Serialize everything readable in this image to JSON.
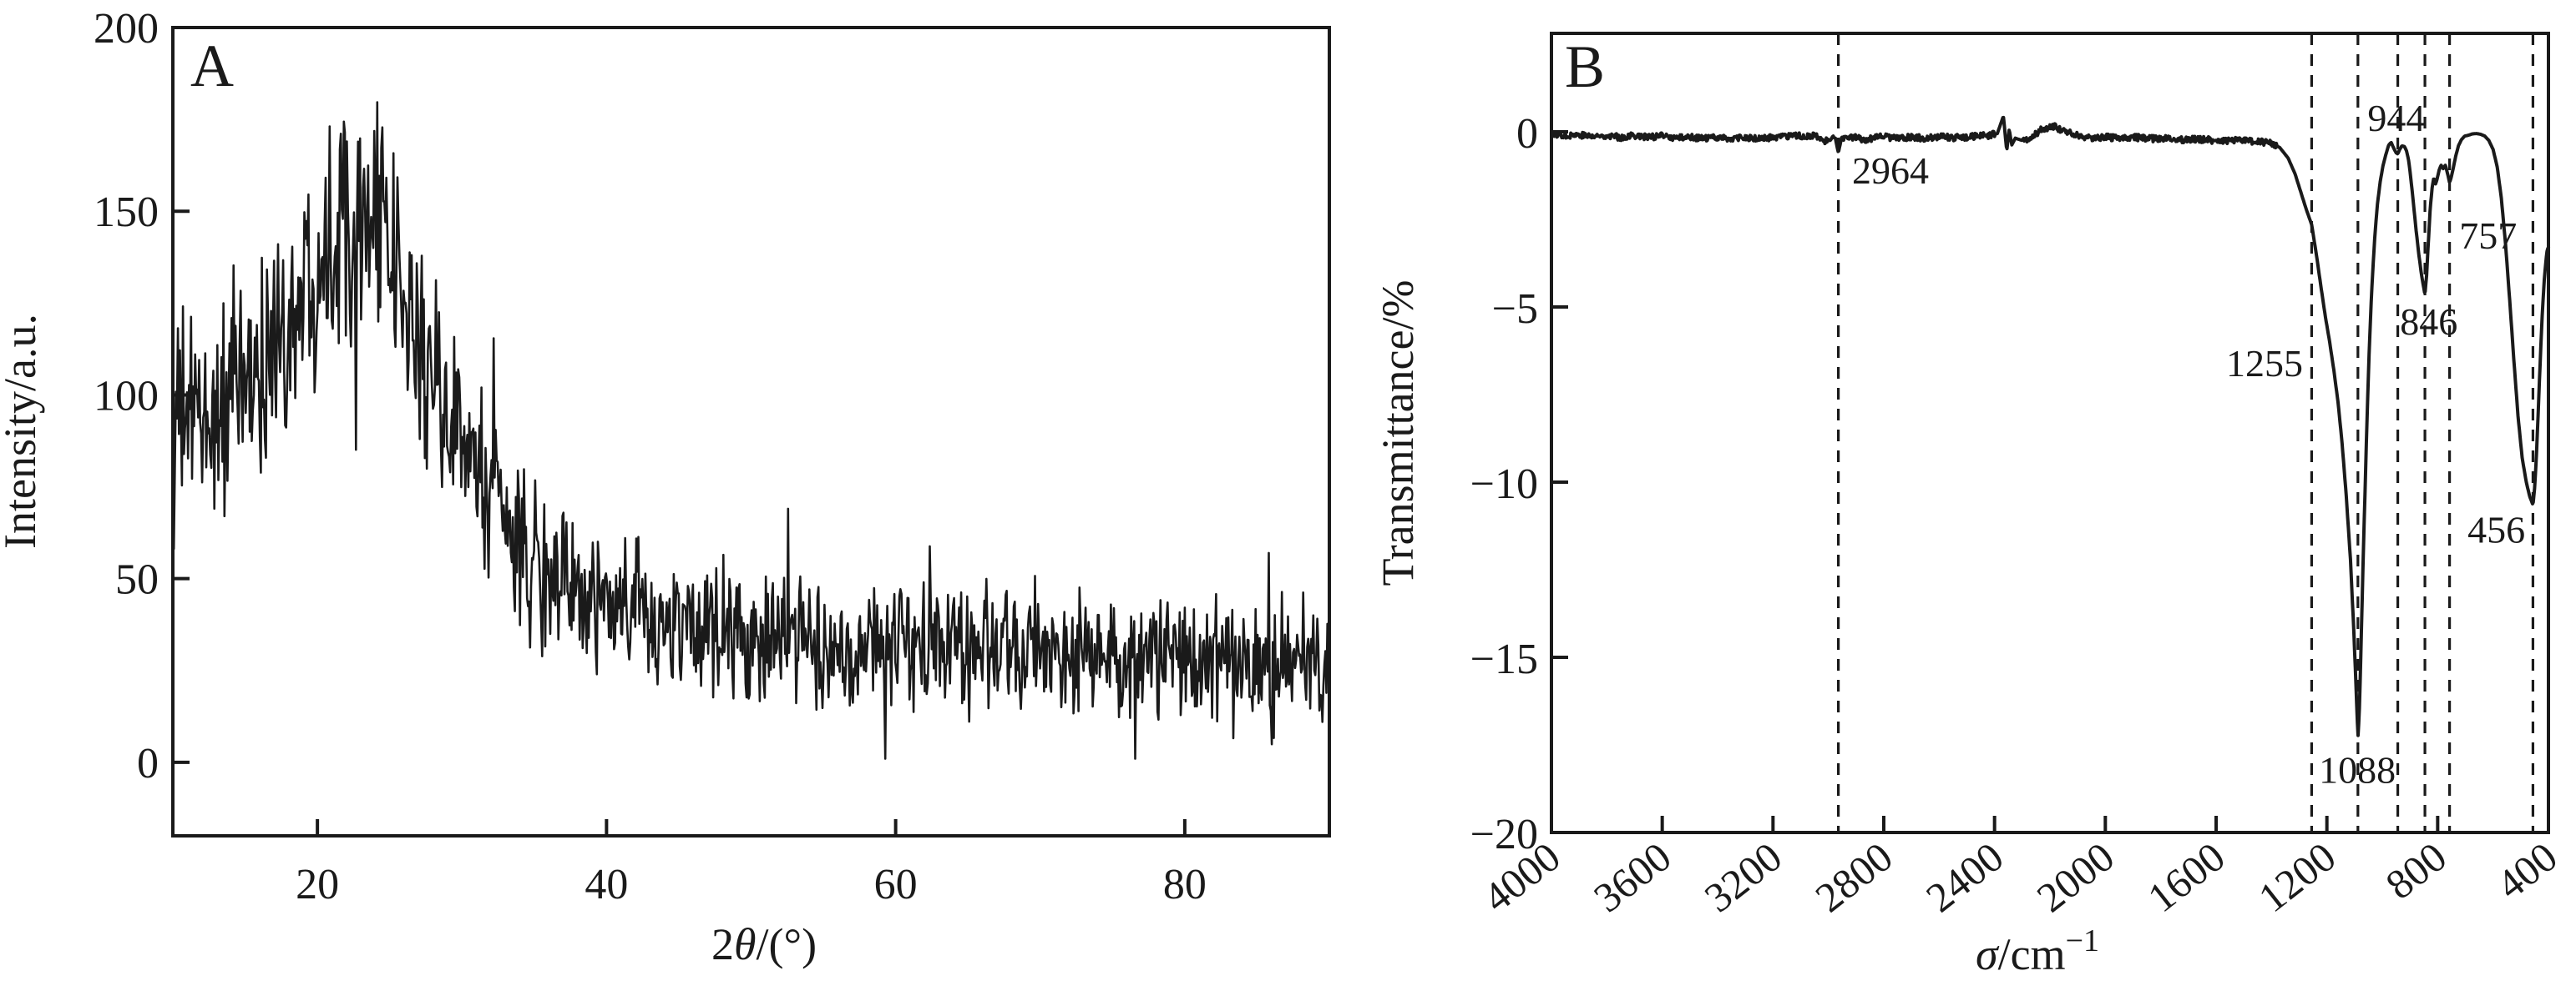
{
  "panel_a": {
    "label": "A",
    "y_axis_title": "Intensity/a.u.",
    "x_axis_title_pre": "2",
    "x_axis_title_italic": "θ",
    "x_axis_title_post": "/(°)",
    "x_tick_labels": [
      "20",
      "40",
      "60",
      "80"
    ],
    "y_tick_labels": [
      "0",
      "50",
      "100",
      "150",
      "200"
    ]
  },
  "panel_b": {
    "label": "B",
    "y_axis_title": "Transmittance/%",
    "x_axis_title_italic": "σ",
    "x_axis_title_post": "/cm",
    "x_axis_title_sup": "−1",
    "x_tick_labels": [
      "4000",
      "3600",
      "3200",
      "2800",
      "2400",
      "2000",
      "1600",
      "1200",
      "800",
      "400"
    ],
    "y_tick_labels": [
      "0",
      "−5",
      "−10",
      "−15",
      "−20"
    ],
    "peak_labels": [
      {
        "text": "2964",
        "sigma": 2776,
        "t": -1.1
      },
      {
        "text": "1255",
        "sigma": 1425,
        "t": -6.6
      },
      {
        "text": "1088",
        "sigma": 1090,
        "t": -18.2
      },
      {
        "text": "944",
        "sigma": 949,
        "t": 0.4
      },
      {
        "text": "846",
        "sigma": 832,
        "t": -5.4
      },
      {
        "text": "757",
        "sigma": 618,
        "t": -2.95
      },
      {
        "text": "456",
        "sigma": 588,
        "t": -11.35
      }
    ]
  },
  "chart_data": [
    {
      "type": "line",
      "panel": "A",
      "title": "",
      "xlabel": "2θ/(°)",
      "ylabel": "Intensity/a.u.",
      "xlim": [
        10,
        90
      ],
      "ylim": [
        -20,
        200
      ],
      "x_ticks": [
        20,
        40,
        60,
        80
      ],
      "y_ticks": [
        0,
        50,
        100,
        150,
        200
      ],
      "grid": false,
      "line_color": "#1a1a1a",
      "description": "Noisy XRD pattern of an amorphous material: broad halo centered near 2-theta = 22 deg rising from a baseline near 90 counts at 10 deg to spikes reaching ~190 counts at the halo maximum, decaying to a noise band centered near 30 counts from 40 to 90 deg.",
      "noise_envelope": {
        "two_theta": [
          10,
          13,
          16,
          19,
          21,
          22,
          23,
          24,
          25,
          26,
          28,
          30,
          32,
          34,
          36,
          38,
          40,
          44,
          48,
          52,
          56,
          60,
          65,
          70,
          75,
          80,
          85,
          90
        ],
        "mean": [
          92,
          95,
          106,
          128,
          146,
          152,
          152,
          146,
          136,
          124,
          104,
          88,
          72,
          60,
          52,
          46,
          42,
          37,
          35,
          33,
          32,
          31,
          30,
          30,
          29,
          28,
          27,
          26
        ],
        "amplitude": [
          32,
          30,
          32,
          34,
          36,
          38,
          38,
          38,
          34,
          32,
          30,
          28,
          26,
          24,
          23,
          22,
          21,
          20,
          20,
          19,
          19,
          19,
          19,
          19,
          18,
          18,
          18,
          18
        ]
      },
      "seed": 1234,
      "step_deg": 0.07
    },
    {
      "type": "line",
      "panel": "B",
      "title": "",
      "xlabel": "σ/cm⁻¹",
      "ylabel": "Transmittance/%",
      "xlim": [
        4000,
        400
      ],
      "ylim": [
        -20,
        2.81
      ],
      "x_ticks": [
        4000,
        3600,
        3200,
        2800,
        2400,
        2000,
        1600,
        1200,
        800,
        400
      ],
      "y_ticks": [
        0,
        -5,
        -10,
        -15,
        -20
      ],
      "grid": false,
      "line_color": "#1a1a1a",
      "marked_peaks": [
        2964,
        1255,
        1088,
        944,
        846,
        757,
        456
      ],
      "points": {
        "x": [
          4000,
          3950,
          3900,
          3850,
          3800,
          3750,
          3700,
          3650,
          3600,
          3550,
          3500,
          3450,
          3400,
          3350,
          3300,
          3250,
          3200,
          3150,
          3100,
          3050,
          3010,
          2990,
          2975,
          2964,
          2952,
          2930,
          2900,
          2870,
          2840,
          2800,
          2750,
          2700,
          2650,
          2600,
          2550,
          2500,
          2450,
          2420,
          2390,
          2368,
          2356,
          2347,
          2338,
          2325,
          2300,
          2270,
          2230,
          2185,
          2140,
          2090,
          2040,
          1990,
          1940,
          1890,
          1840,
          1790,
          1740,
          1690,
          1640,
          1590,
          1540,
          1490,
          1440,
          1400,
          1370,
          1340,
          1315,
          1295,
          1275,
          1255,
          1238,
          1220,
          1205,
          1190,
          1175,
          1160,
          1145,
          1130,
          1115,
          1103,
          1094,
          1088,
          1083,
          1077,
          1070,
          1062,
          1054,
          1046,
          1038,
          1028,
          1018,
          1008,
          997,
          987,
          977,
          968,
          958,
          950,
          944,
          937,
          929,
          920,
          912,
          904,
          896,
          888,
          878,
          868,
          858,
          846,
          840,
          834,
          827,
          820,
          814,
          808,
          802,
          795,
          788,
          780,
          772,
          764,
          757,
          751,
          744,
          735,
          725,
          714,
          702,
          690,
          675,
          660,
          645,
          630,
          615,
          600,
          585,
          570,
          555,
          540,
          525,
          510,
          495,
          480,
          468,
          456,
          449,
          442,
          435,
          428,
          421,
          414,
          408,
          404,
          400
        ],
        "y": [
          -0.05,
          -0.1,
          -0.08,
          -0.14,
          -0.1,
          -0.16,
          -0.1,
          -0.15,
          -0.12,
          -0.18,
          -0.14,
          -0.2,
          -0.15,
          -0.2,
          -0.17,
          -0.2,
          -0.16,
          -0.14,
          -0.12,
          -0.12,
          -0.28,
          -0.14,
          -0.18,
          -0.6,
          -0.15,
          -0.18,
          -0.17,
          -0.22,
          -0.18,
          -0.14,
          -0.18,
          -0.15,
          -0.18,
          -0.14,
          -0.17,
          -0.15,
          -0.12,
          -0.1,
          -0.05,
          0.45,
          -0.55,
          0.08,
          -0.38,
          -0.18,
          -0.25,
          -0.2,
          0.08,
          0.15,
          0.0,
          -0.12,
          -0.18,
          -0.15,
          -0.2,
          -0.16,
          -0.2,
          -0.18,
          -0.24,
          -0.2,
          -0.22,
          -0.26,
          -0.24,
          -0.27,
          -0.28,
          -0.32,
          -0.45,
          -0.75,
          -1.2,
          -1.7,
          -2.2,
          -2.65,
          -3.5,
          -4.5,
          -5.3,
          -6.0,
          -6.8,
          -7.7,
          -8.9,
          -10.4,
          -12.2,
          -14.2,
          -16.0,
          -17.3,
          -16.6,
          -14.8,
          -12.5,
          -10.2,
          -7.9,
          -6.0,
          -4.5,
          -3.1,
          -2.1,
          -1.45,
          -0.95,
          -0.65,
          -0.38,
          -0.3,
          -0.48,
          -0.6,
          -0.63,
          -0.5,
          -0.4,
          -0.42,
          -0.55,
          -0.85,
          -1.4,
          -2.0,
          -2.8,
          -3.5,
          -4.1,
          -4.65,
          -4.1,
          -3.2,
          -2.2,
          -1.6,
          -1.3,
          -1.5,
          -1.35,
          -1.1,
          -0.95,
          -1.05,
          -0.95,
          -1.2,
          -1.45,
          -1.3,
          -1.05,
          -0.7,
          -0.4,
          -0.22,
          -0.12,
          -0.1,
          -0.06,
          -0.05,
          -0.07,
          -0.12,
          -0.25,
          -0.5,
          -1.0,
          -1.9,
          -3.2,
          -4.8,
          -6.5,
          -8.1,
          -9.3,
          -10.0,
          -10.4,
          -10.65,
          -10.1,
          -9.0,
          -7.6,
          -6.2,
          -5.0,
          -4.1,
          -3.6,
          -3.35,
          -3.3
        ]
      },
      "baseline_noise_amp": 0.09,
      "seed": 77
    }
  ]
}
